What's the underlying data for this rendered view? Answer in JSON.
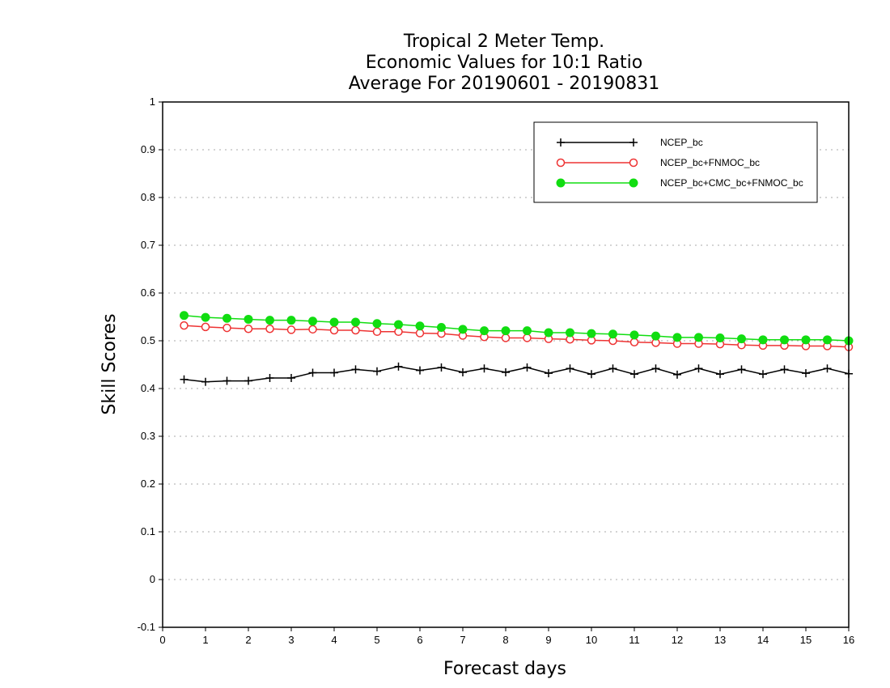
{
  "chart_data": {
    "type": "line",
    "title": [
      "Tropical 2 Meter Temp.",
      "Economic Values for 10:1 Ratio",
      "Average For 20190601 - 20190831"
    ],
    "xlabel": "Forecast days",
    "ylabel": "Skill Scores",
    "xlim": [
      0,
      16
    ],
    "ylim": [
      -0.1,
      1
    ],
    "xticks": [
      "0",
      "1",
      "2",
      "3",
      "4",
      "5",
      "6",
      "7",
      "8",
      "9",
      "10",
      "11",
      "12",
      "13",
      "14",
      "15",
      "16"
    ],
    "yticks": [
      "-0.1",
      "0",
      "0.1",
      "0.2",
      "0.3",
      "0.4",
      "0.5",
      "0.6",
      "0.7",
      "0.8",
      "0.9",
      "1"
    ],
    "grid": true,
    "legend_position": "top-right",
    "x": [
      0.5,
      1,
      1.5,
      2,
      2.5,
      3,
      3.5,
      4,
      4.5,
      5,
      5.5,
      6,
      6.5,
      7,
      7.5,
      8,
      8.5,
      9,
      9.5,
      10,
      10.5,
      11,
      11.5,
      12,
      12.5,
      13,
      13.5,
      14,
      14.5,
      15,
      15.5,
      16
    ],
    "series": [
      {
        "name": "NCEP_bc",
        "color": "#000000",
        "marker": "plus",
        "values": [
          0.419,
          0.414,
          0.416,
          0.416,
          0.422,
          0.422,
          0.433,
          0.433,
          0.44,
          0.436,
          0.446,
          0.438,
          0.444,
          0.434,
          0.442,
          0.434,
          0.444,
          0.432,
          0.442,
          0.43,
          0.442,
          0.43,
          0.442,
          0.429,
          0.442,
          0.43,
          0.44,
          0.43,
          0.44,
          0.432,
          0.442,
          0.431
        ]
      },
      {
        "name": "NCEP_bc+FNMOC_bc",
        "color": "#ee3333",
        "marker": "open-circle",
        "values": [
          0.532,
          0.529,
          0.527,
          0.525,
          0.525,
          0.523,
          0.524,
          0.522,
          0.522,
          0.519,
          0.519,
          0.516,
          0.515,
          0.511,
          0.508,
          0.506,
          0.506,
          0.504,
          0.503,
          0.501,
          0.5,
          0.497,
          0.496,
          0.494,
          0.494,
          0.493,
          0.491,
          0.49,
          0.49,
          0.489,
          0.489,
          0.487
        ]
      },
      {
        "name": "NCEP_bc+CMC_bc+FNMOC_bc",
        "color": "#11dd11",
        "marker": "filled-circle",
        "values": [
          0.553,
          0.549,
          0.547,
          0.545,
          0.543,
          0.543,
          0.541,
          0.539,
          0.539,
          0.536,
          0.534,
          0.531,
          0.528,
          0.524,
          0.521,
          0.521,
          0.521,
          0.517,
          0.517,
          0.515,
          0.514,
          0.512,
          0.51,
          0.507,
          0.507,
          0.506,
          0.504,
          0.502,
          0.502,
          0.502,
          0.502,
          0.5
        ]
      }
    ]
  }
}
